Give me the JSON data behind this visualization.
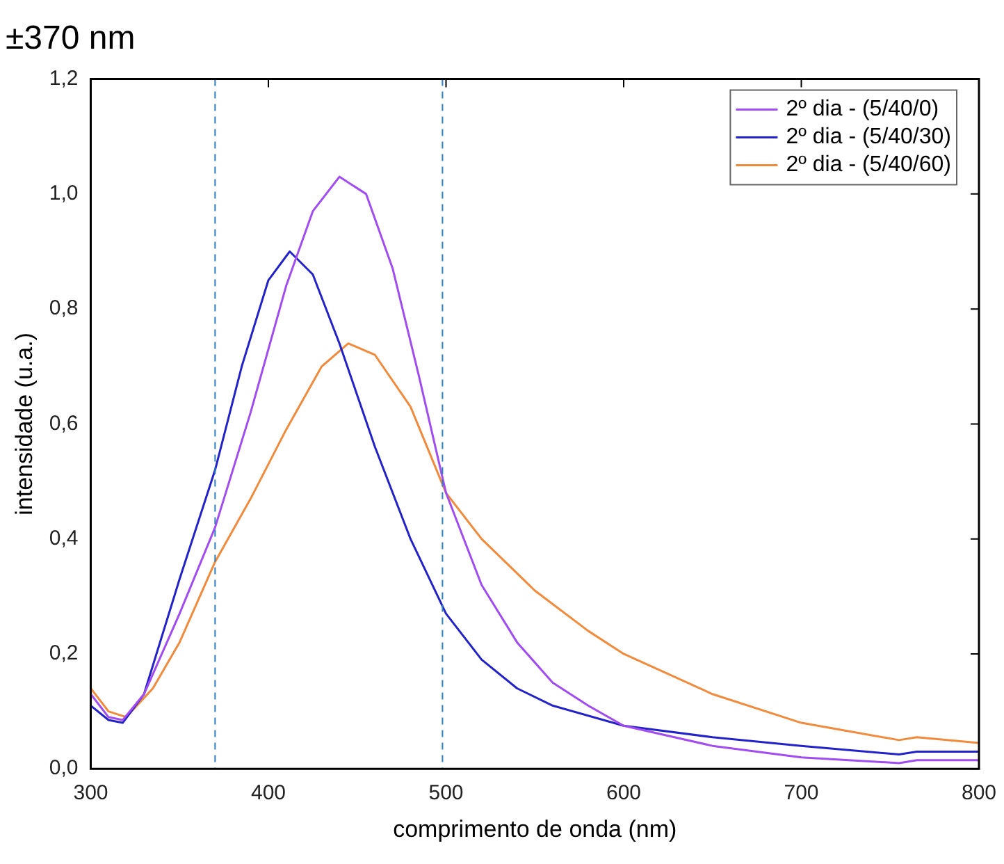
{
  "chart_data": {
    "type": "line",
    "title": "±370 nm",
    "xlabel": "comprimento de onda (nm)",
    "ylabel": "intensidade (u.a.)",
    "xlim": [
      300,
      800
    ],
    "xticks": [
      300,
      400,
      500,
      600,
      700,
      800
    ],
    "ylim": [
      0,
      1.2
    ],
    "yticks": [
      {
        "value": 0,
        "label": "0,0"
      },
      {
        "value": 0.2,
        "label": "0,2"
      },
      {
        "value": 0.4,
        "label": "0,4"
      },
      {
        "value": 0.6,
        "label": "0,6"
      },
      {
        "value": 0.8,
        "label": "0,8"
      },
      {
        "value": 1.0,
        "label": "1,0"
      },
      {
        "value": 1.2,
        "label": "1,2"
      }
    ],
    "legend": "top right",
    "grid": false,
    "ref_lines": [
      {
        "axis": "x",
        "value": 370,
        "color": "#2f7fc0",
        "line_style": "dashed"
      },
      {
        "axis": "x",
        "value": 498,
        "color": "#2f7fc0",
        "line_style": "dashed"
      }
    ],
    "series": [
      {
        "name": "2º dia - (5/40/0)",
        "color": "#a04cf0",
        "x": [
          300,
          310,
          318,
          330,
          350,
          370,
          390,
          410,
          425,
          440,
          455,
          470,
          485,
          500,
          520,
          540,
          560,
          580,
          600,
          650,
          700,
          755,
          765,
          800
        ],
        "values": [
          0.13,
          0.09,
          0.085,
          0.13,
          0.27,
          0.42,
          0.62,
          0.84,
          0.97,
          1.03,
          1.0,
          0.87,
          0.68,
          0.48,
          0.32,
          0.22,
          0.15,
          0.11,
          0.075,
          0.04,
          0.02,
          0.01,
          0.015,
          0.015
        ]
      },
      {
        "name": "2º dia - (5/40/30)",
        "color": "#2222c8",
        "x": [
          300,
          310,
          318,
          330,
          350,
          370,
          385,
          400,
          412,
          425,
          440,
          460,
          480,
          500,
          520,
          540,
          560,
          600,
          650,
          700,
          755,
          765,
          800
        ],
        "values": [
          0.11,
          0.085,
          0.08,
          0.13,
          0.33,
          0.52,
          0.7,
          0.85,
          0.9,
          0.86,
          0.74,
          0.56,
          0.4,
          0.27,
          0.19,
          0.14,
          0.11,
          0.075,
          0.055,
          0.04,
          0.025,
          0.03,
          0.03
        ]
      },
      {
        "name": "2º dia - (5/40/60)",
        "color": "#f08a3c",
        "x": [
          300,
          310,
          320,
          335,
          350,
          370,
          390,
          410,
          430,
          445,
          460,
          480,
          500,
          520,
          550,
          580,
          600,
          650,
          700,
          755,
          765,
          800
        ],
        "values": [
          0.14,
          0.1,
          0.09,
          0.14,
          0.22,
          0.36,
          0.47,
          0.59,
          0.7,
          0.74,
          0.72,
          0.63,
          0.48,
          0.4,
          0.31,
          0.24,
          0.2,
          0.13,
          0.08,
          0.05,
          0.055,
          0.045
        ]
      }
    ]
  }
}
